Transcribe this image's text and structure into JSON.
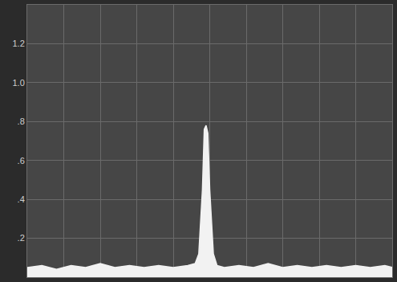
{
  "chart_data": {
    "type": "line",
    "x": [
      0,
      4,
      8,
      12,
      16,
      20,
      24,
      28,
      32,
      36,
      40,
      44,
      46,
      47,
      48,
      48.5,
      49,
      49.5,
      50,
      51,
      52,
      54,
      58,
      62,
      66,
      70,
      74,
      78,
      82,
      86,
      90,
      94,
      98,
      100
    ],
    "values": [
      0.05,
      0.06,
      0.04,
      0.06,
      0.05,
      0.07,
      0.05,
      0.06,
      0.05,
      0.06,
      0.05,
      0.06,
      0.07,
      0.12,
      0.45,
      0.76,
      0.78,
      0.74,
      0.45,
      0.12,
      0.06,
      0.05,
      0.06,
      0.05,
      0.07,
      0.05,
      0.06,
      0.05,
      0.06,
      0.05,
      0.06,
      0.05,
      0.06,
      0.05
    ],
    "color": "#f2f2f2",
    "xlim": [
      0,
      100
    ],
    "xticks": [
      0,
      10,
      20,
      30,
      40,
      50,
      60,
      70,
      80,
      90,
      100
    ],
    "ylim": [
      0,
      1.4
    ],
    "yticks": [
      {
        "value": 0.2,
        "label": ".2"
      },
      {
        "value": 0.4,
        "label": ".4"
      },
      {
        "value": 0.6,
        "label": ".6"
      },
      {
        "value": 0.8,
        "label": ".8"
      },
      {
        "value": 1.0,
        "label": "1.0"
      },
      1.2
    ],
    "grid": true,
    "tick_labels": "y"
  }
}
